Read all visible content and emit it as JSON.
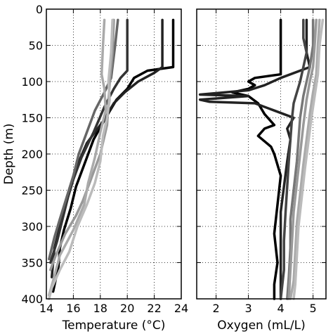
{
  "chart_data": [
    {
      "type": "line",
      "orientation": "depth-profile",
      "xlabel": "Temperature (°C)",
      "ylabel": "Depth (m)",
      "xlim": [
        14,
        24
      ],
      "ylim": [
        400,
        0
      ],
      "xticks": [
        "14",
        "16",
        "18",
        "20",
        "22",
        "24"
      ],
      "yticks": [
        "0",
        "50",
        "100",
        "150",
        "200",
        "250",
        "300",
        "350",
        "400"
      ],
      "grid": true,
      "series": [
        {
          "color": "#000000",
          "points": [
            [
              23.4,
              15
            ],
            [
              23.4,
              80
            ],
            [
              21.5,
              85
            ],
            [
              20.5,
              95
            ],
            [
              20.0,
              110
            ],
            [
              19.2,
              125
            ],
            [
              18.4,
              150
            ],
            [
              17.5,
              180
            ],
            [
              16.8,
              215
            ],
            [
              16.2,
              245
            ],
            [
              15.8,
              275
            ],
            [
              15.3,
              305
            ],
            [
              15.0,
              330
            ],
            [
              14.9,
              355
            ],
            [
              14.5,
              390
            ]
          ]
        },
        {
          "color": "#222222",
          "points": [
            [
              22.6,
              15
            ],
            [
              22.6,
              80
            ],
            [
              22.0,
              88
            ],
            [
              20.8,
              100
            ],
            [
              19.8,
              115
            ],
            [
              19.0,
              130
            ],
            [
              18.2,
              155
            ],
            [
              17.0,
              185
            ],
            [
              16.3,
              215
            ],
            [
              15.8,
              245
            ],
            [
              15.4,
              270
            ],
            [
              15.0,
              300
            ],
            [
              14.6,
              330
            ],
            [
              14.4,
              370
            ]
          ]
        },
        {
          "color": "#333333",
          "points": [
            [
              20.0,
              15
            ],
            [
              20.0,
              85
            ],
            [
              19.5,
              95
            ],
            [
              19.0,
              110
            ],
            [
              18.3,
              135
            ],
            [
              17.5,
              170
            ],
            [
              16.6,
              205
            ],
            [
              16.0,
              235
            ],
            [
              15.6,
              260
            ],
            [
              15.2,
              290
            ],
            [
              14.8,
              320
            ],
            [
              14.3,
              350
            ]
          ]
        },
        {
          "color": "#666666",
          "points": [
            [
              19.3,
              15
            ],
            [
              19.1,
              50
            ],
            [
              18.8,
              95
            ],
            [
              18.3,
              115
            ],
            [
              17.6,
              140
            ],
            [
              17.0,
              170
            ],
            [
              16.4,
              200
            ],
            [
              16.0,
              230
            ],
            [
              15.5,
              260
            ],
            [
              15.0,
              290
            ],
            [
              14.6,
              315
            ],
            [
              14.2,
              345
            ]
          ]
        },
        {
          "color": "#999999",
          "points": [
            [
              19.0,
              15
            ],
            [
              18.9,
              60
            ],
            [
              18.7,
              100
            ],
            [
              18.6,
              130
            ],
            [
              18.5,
              160
            ],
            [
              18.0,
              200
            ],
            [
              17.3,
              235
            ],
            [
              16.7,
              265
            ],
            [
              16.2,
              285
            ],
            [
              15.4,
              310
            ],
            [
              14.7,
              340
            ],
            [
              14.3,
              360
            ]
          ]
        },
        {
          "color": "#aaaaaa",
          "points": [
            [
              18.3,
              15
            ],
            [
              18.2,
              50
            ],
            [
              18.1,
              90
            ],
            [
              18.3,
              110
            ],
            [
              18.4,
              140
            ],
            [
              18.0,
              170
            ],
            [
              17.6,
              205
            ],
            [
              17.1,
              240
            ],
            [
              16.8,
              270
            ],
            [
              16.0,
              305
            ],
            [
              15.0,
              340
            ],
            [
              14.5,
              375
            ],
            [
              14.2,
              395
            ]
          ]
        },
        {
          "color": "#bbbbbb",
          "points": [
            [
              18.9,
              15
            ],
            [
              18.8,
              60
            ],
            [
              18.6,
              100
            ],
            [
              18.7,
              125
            ],
            [
              18.5,
              150
            ],
            [
              18.2,
              175
            ],
            [
              18.0,
              210
            ],
            [
              17.6,
              240
            ],
            [
              17.0,
              270
            ],
            [
              16.3,
              300
            ],
            [
              15.7,
              335
            ],
            [
              15.0,
              360
            ],
            [
              14.4,
              385
            ],
            [
              14.2,
              400
            ]
          ]
        }
      ]
    },
    {
      "type": "line",
      "orientation": "depth-profile",
      "xlabel": "Oxygen (mL/L)",
      "ylabel": "",
      "xlim": [
        1.4,
        5.4
      ],
      "ylim": [
        400,
        0
      ],
      "xticks": [
        "2",
        "3",
        "4",
        "5"
      ],
      "yticks": [
        "0",
        "50",
        "100",
        "150",
        "200",
        "250",
        "300",
        "350",
        "400"
      ],
      "grid": true,
      "series": [
        {
          "color": "#000000",
          "points": [
            [
              4.0,
              15
            ],
            [
              4.0,
              60
            ],
            [
              4.0,
              90
            ],
            [
              3.2,
              95
            ],
            [
              3.0,
              100
            ],
            [
              3.2,
              105
            ],
            [
              3.0,
              110
            ],
            [
              2.5,
              115
            ],
            [
              3.0,
              120
            ],
            [
              3.3,
              130
            ],
            [
              3.5,
              145
            ],
            [
              3.8,
              160
            ],
            [
              3.5,
              165
            ],
            [
              3.3,
              175
            ],
            [
              3.7,
              190
            ],
            [
              3.8,
              200
            ],
            [
              4.0,
              230
            ],
            [
              3.9,
              270
            ],
            [
              3.8,
              310
            ],
            [
              3.9,
              350
            ],
            [
              3.8,
              380
            ],
            [
              3.8,
              400
            ]
          ]
        },
        {
          "color": "#222222",
          "points": [
            [
              4.8,
              15
            ],
            [
              4.8,
              60
            ],
            [
              4.9,
              80
            ],
            [
              4.0,
              95
            ],
            [
              3.5,
              105
            ],
            [
              3.0,
              112
            ],
            [
              1.5,
              118
            ],
            [
              3.0,
              120
            ],
            [
              1.5,
              125
            ],
            [
              1.8,
              128
            ],
            [
              3.2,
              130
            ],
            [
              3.8,
              140
            ],
            [
              4.4,
              150
            ],
            [
              4.2,
              165
            ],
            [
              4.3,
              180
            ],
            [
              4.2,
              210
            ],
            [
              4.1,
              245
            ],
            [
              4.0,
              280
            ],
            [
              4.0,
              320
            ],
            [
              4.0,
              360
            ],
            [
              4.0,
              400
            ]
          ]
        },
        {
          "color": "#444444",
          "points": [
            [
              4.7,
              15
            ],
            [
              4.7,
              40
            ],
            [
              4.8,
              60
            ],
            [
              4.7,
              80
            ],
            [
              4.6,
              100
            ],
            [
              4.5,
              115
            ],
            [
              4.4,
              130
            ],
            [
              4.35,
              150
            ],
            [
              4.3,
              180
            ],
            [
              4.25,
              210
            ],
            [
              4.2,
              245
            ],
            [
              4.15,
              280
            ],
            [
              4.1,
              320
            ],
            [
              4.1,
              360
            ],
            [
              4.0,
              400
            ]
          ]
        },
        {
          "color": "#777777",
          "points": [
            [
              5.0,
              15
            ],
            [
              5.0,
              50
            ],
            [
              4.9,
              80
            ],
            [
              4.8,
              100
            ],
            [
              4.7,
              120
            ],
            [
              4.6,
              150
            ],
            [
              4.55,
              180
            ],
            [
              4.5,
              210
            ],
            [
              4.4,
              250
            ],
            [
              4.3,
              290
            ],
            [
              4.3,
              330
            ],
            [
              4.25,
              370
            ],
            [
              4.2,
              400
            ]
          ]
        },
        {
          "color": "#999999",
          "points": [
            [
              5.1,
              15
            ],
            [
              5.05,
              50
            ],
            [
              5.0,
              80
            ],
            [
              4.9,
              100
            ],
            [
              4.8,
              125
            ],
            [
              4.7,
              160
            ],
            [
              4.6,
              200
            ],
            [
              4.5,
              240
            ],
            [
              4.4,
              280
            ],
            [
              4.35,
              320
            ],
            [
              4.3,
              360
            ],
            [
              4.25,
              400
            ]
          ]
        },
        {
          "color": "#aaaaaa",
          "points": [
            [
              5.2,
              15
            ],
            [
              5.15,
              50
            ],
            [
              5.1,
              90
            ],
            [
              5.0,
              115
            ],
            [
              4.9,
              145
            ],
            [
              4.8,
              180
            ],
            [
              4.7,
              215
            ],
            [
              4.6,
              255
            ],
            [
              4.5,
              295
            ],
            [
              4.45,
              335
            ],
            [
              4.4,
              375
            ],
            [
              4.3,
              400
            ]
          ]
        },
        {
          "color": "#bbbbbb",
          "points": [
            [
              5.3,
              15
            ],
            [
              5.2,
              50
            ],
            [
              5.15,
              90
            ],
            [
              5.05,
              120
            ],
            [
              4.95,
              150
            ],
            [
              4.85,
              185
            ],
            [
              4.75,
              220
            ],
            [
              4.65,
              260
            ],
            [
              4.55,
              300
            ],
            [
              4.5,
              340
            ],
            [
              4.45,
              380
            ],
            [
              4.4,
              400
            ]
          ]
        }
      ]
    }
  ]
}
